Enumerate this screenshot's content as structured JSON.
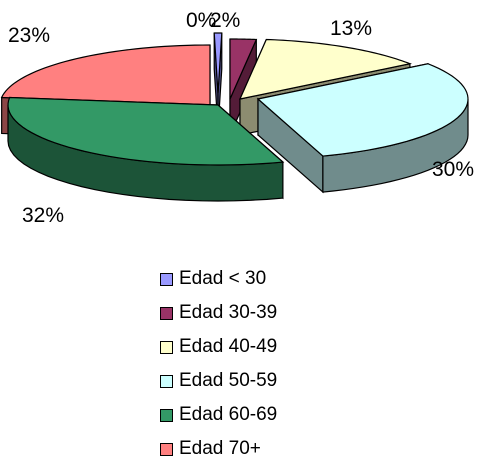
{
  "chart_data": {
    "type": "pie",
    "title": "",
    "categories": [
      "Edad < 30",
      "Edad 30-39",
      "Edad 40-49",
      "Edad 50-59",
      "Edad 60-69",
      "Edad 70+"
    ],
    "values": [
      0,
      2,
      13,
      30,
      32,
      23
    ],
    "data_labels": [
      "0%",
      "2%",
      "13%",
      "30%",
      "32%",
      "23%"
    ],
    "colors": [
      "#9999ff",
      "#993366",
      "#ffffcc",
      "#ccffff",
      "#339966",
      "#ff8080"
    ],
    "style": "3d-exploded",
    "legend": "bottom"
  }
}
